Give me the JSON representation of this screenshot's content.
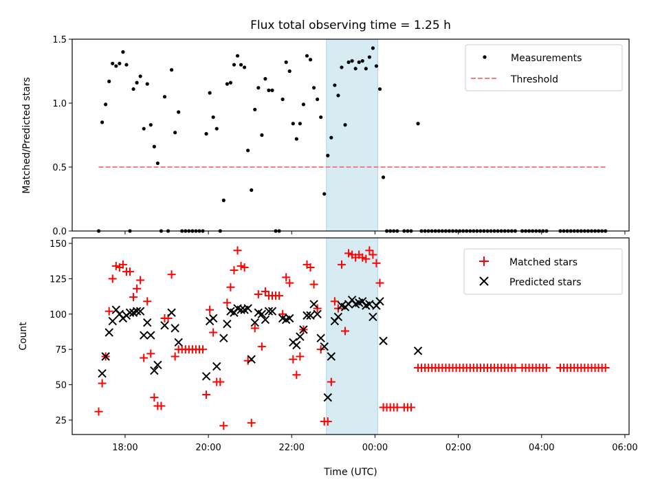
{
  "chart_data": [
    {
      "type": "scatter",
      "title": "Flux total observing time = 1.25 h",
      "xlabel": "",
      "ylabel": "Matched/Predicted stars",
      "ylim": [
        0,
        1.5
      ],
      "xlim_hours": [
        16.73,
        30.1
      ],
      "yticks": [
        "0.0",
        "0.5",
        "1.0",
        "1.5"
      ],
      "legend_position": "top-right",
      "legend": [
        "Measurements",
        "Threshold"
      ],
      "threshold": 0.5,
      "shaded_span": [
        "22:50",
        "00:04"
      ],
      "time_start": "17:22",
      "time_step_minutes": 5,
      "series": [
        {
          "name": "Measurements",
          "color": "#000000",
          "values": [
            0,
            0.85,
            0.99,
            1.17,
            1.31,
            1.29,
            1.31,
            1.4,
            1.3,
            0,
            1.11,
            1.16,
            1.21,
            0.8,
            1.15,
            0.83,
            0.66,
            0.53,
            0,
            1.05,
            0,
            1.26,
            0.77,
            0.93,
            0,
            0,
            0,
            0,
            0,
            0,
            0,
            0.76,
            1.08,
            0.89,
            0.8,
            0,
            0.24,
            1.15,
            1.16,
            1.3,
            1.37,
            1.3,
            1.28,
            0.63,
            0.32,
            0.95,
            1.12,
            0.75,
            1.19,
            1.1,
            1.1,
            0,
            0,
            1.03,
            1.32,
            1.25,
            0.84,
            0.72,
            0.84,
            0.99,
            1.37,
            1.34,
            1.12,
            1.03,
            0.89,
            0.29,
            0.59,
            0.73,
            1.14,
            1.06,
            1.28,
            0.83,
            1.32,
            1.33,
            1.27,
            1.32,
            1.33,
            1.27,
            1.36,
            1.43,
            1.29,
            1.11,
            0.42,
            0,
            0,
            0,
            0,
            null,
            0,
            0,
            0,
            null,
            0.84,
            0,
            0,
            0,
            0,
            0,
            0,
            0,
            0,
            0,
            0,
            0,
            0,
            0,
            0,
            0,
            0,
            0,
            0,
            0,
            0,
            0,
            0,
            0,
            0,
            0,
            0,
            0,
            0,
            null,
            0,
            0,
            0,
            0,
            0,
            0,
            0,
            0,
            null,
            null,
            null,
            0,
            0,
            0,
            0,
            0,
            0,
            0,
            0,
            0,
            0,
            0,
            0,
            0,
            0
          ]
        },
        {
          "name": "Threshold",
          "color": "#f08080",
          "values": [
            0.5
          ]
        }
      ]
    },
    {
      "type": "scatter",
      "xlabel": "Time (UTC)",
      "ylabel": "Count",
      "ylim": [
        14.8,
        153.9
      ],
      "yticks": [
        "25",
        "50",
        "75",
        "100",
        "125",
        "150"
      ],
      "xticks": [
        "18:00",
        "20:00",
        "22:00",
        "00:00",
        "02:00",
        "04:00",
        "06:00"
      ],
      "legend_position": "top-right",
      "legend": [
        "Matched stars",
        "Predicted stars"
      ],
      "series": [
        {
          "name": "Matched stars",
          "color": "#ff0000",
          "values": [
            31,
            51,
            70,
            102,
            125,
            134,
            133,
            135,
            130,
            130,
            112,
            118,
            124,
            69,
            109,
            72,
            41,
            35,
            35,
            97,
            97,
            128,
            70,
            75,
            75,
            75,
            75,
            75,
            75,
            75,
            75,
            43,
            103,
            87,
            52,
            52,
            21,
            108,
            119,
            131,
            145,
            134,
            133,
            67,
            23,
            90,
            114,
            77,
            116,
            113,
            113,
            113,
            113,
            100,
            126,
            122,
            68,
            57,
            70,
            89,
            135,
            133,
            121,
            104,
            75,
            24,
            24,
            52,
            109,
            104,
            135,
            88,
            143,
            142,
            140,
            142,
            140,
            139,
            145,
            142,
            136,
            122,
            34,
            34,
            34,
            34,
            34,
            null,
            34,
            34,
            34,
            null,
            62,
            62,
            62,
            62,
            62,
            62,
            62,
            62,
            62,
            62,
            62,
            62,
            62,
            62,
            62,
            62,
            62,
            62,
            62,
            62,
            62,
            62,
            62,
            62,
            62,
            62,
            62,
            62,
            62,
            null,
            62,
            62,
            62,
            62,
            62,
            62,
            62,
            62,
            null,
            null,
            null,
            62,
            62,
            62,
            62,
            62,
            62,
            62,
            62,
            62,
            62,
            62,
            62,
            62,
            62
          ]
        },
        {
          "name": "Predicted stars",
          "color": "#000000",
          "values": [
            null,
            58,
            70,
            87,
            95,
            103,
            100,
            97,
            99,
            101,
            101,
            102,
            102,
            85,
            94,
            85,
            60,
            64,
            null,
            92,
            null,
            101,
            90,
            80,
            null,
            null,
            null,
            null,
            null,
            null,
            null,
            56,
            95,
            97,
            63,
            null,
            83,
            93,
            102,
            101,
            104,
            103,
            103,
            104,
            68,
            94,
            101,
            100,
            96,
            102,
            102,
            null,
            null,
            97,
            96,
            97,
            80,
            78,
            84,
            89,
            99,
            99,
            107,
            100,
            83,
            77,
            41,
            70,
            95,
            98,
            106,
            105,
            107,
            110,
            107,
            108,
            109,
            106,
            107,
            98,
            106,
            109,
            81,
            null,
            null,
            null,
            null,
            null,
            null,
            null,
            null,
            null,
            74
          ]
        }
      ]
    }
  ]
}
